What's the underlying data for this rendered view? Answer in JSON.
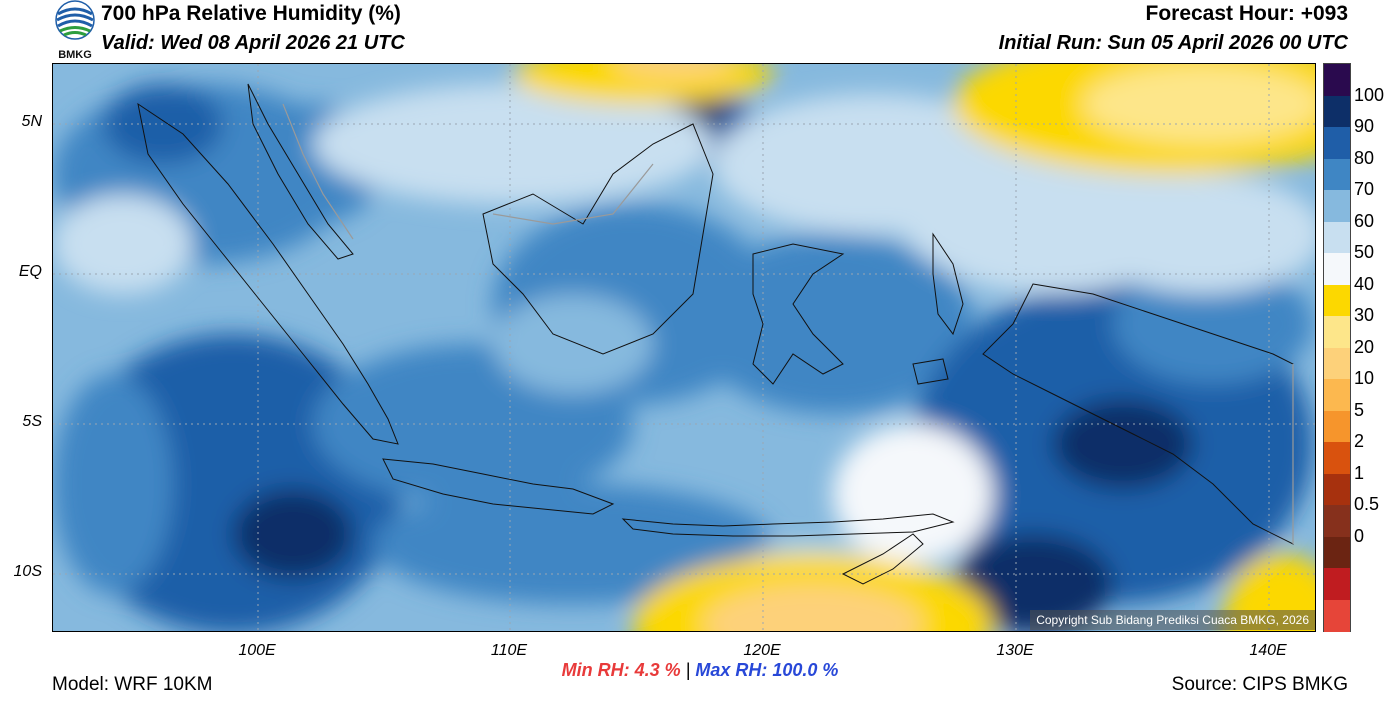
{
  "header": {
    "title": "700 hPa Relative Humidity (%)",
    "valid": "Valid: Wed 08 April 2026 21 UTC",
    "forecast_hour": "Forecast Hour: +093",
    "initial_run": "Initial Run: Sun 05 April 2026 00 UTC",
    "logo_text": "BMKG"
  },
  "map": {
    "lat_labels": [
      "5N",
      "EQ",
      "5S",
      "10S"
    ],
    "lon_labels": [
      "100E",
      "110E",
      "120E",
      "130E",
      "140E"
    ],
    "copyright": "Copyright Sub Bidang Prediksi Cuaca BMKG, 2026"
  },
  "stats": {
    "min_rh": "Min RH:   4.3 %",
    "separator": "|",
    "max_rh": "Max RH: 100.0 %"
  },
  "footer": {
    "model": "Model: WRF 10KM",
    "source": "Source: CIPS BMKG"
  },
  "colorbar": {
    "labels": [
      "100",
      "90",
      "80",
      "70",
      "60",
      "50",
      "40",
      "30",
      "20",
      "10",
      "5",
      "2",
      "1",
      "0.5",
      "0"
    ],
    "colors": [
      "#2a0a4e",
      "#0d2f68",
      "#1f5ea8",
      "#3f86c4",
      "#86b9de",
      "#c8dff0",
      "#f5f8fb",
      "#fcd800",
      "#fde68a",
      "#fdd17a",
      "#fcb84f",
      "#f6952c",
      "#d9520e",
      "#a7310e",
      "#86301c",
      "#6b2412",
      "#c01c20",
      "#e64539"
    ]
  }
}
